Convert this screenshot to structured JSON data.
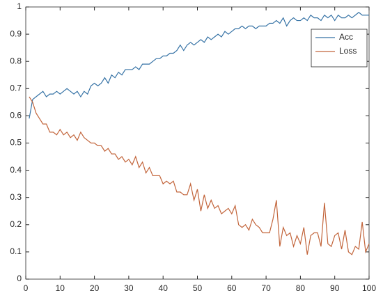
{
  "chart_data": {
    "type": "line",
    "x": [
      1,
      2,
      3,
      4,
      5,
      6,
      7,
      8,
      9,
      10,
      11,
      12,
      13,
      14,
      15,
      16,
      17,
      18,
      19,
      20,
      21,
      22,
      23,
      24,
      25,
      26,
      27,
      28,
      29,
      30,
      31,
      32,
      33,
      34,
      35,
      36,
      37,
      38,
      39,
      40,
      41,
      42,
      43,
      44,
      45,
      46,
      47,
      48,
      49,
      50,
      51,
      52,
      53,
      54,
      55,
      56,
      57,
      58,
      59,
      60,
      61,
      62,
      63,
      64,
      65,
      66,
      67,
      68,
      69,
      70,
      71,
      72,
      73,
      74,
      75,
      76,
      77,
      78,
      79,
      80,
      81,
      82,
      83,
      84,
      85,
      86,
      87,
      88,
      89,
      90,
      91,
      92,
      93,
      94,
      95,
      96,
      97,
      98,
      99,
      100
    ],
    "series": [
      {
        "name": "Acc",
        "color": "#3572a5",
        "values": [
          0.59,
          0.66,
          0.67,
          0.68,
          0.69,
          0.67,
          0.68,
          0.68,
          0.69,
          0.68,
          0.69,
          0.7,
          0.69,
          0.68,
          0.69,
          0.67,
          0.69,
          0.68,
          0.71,
          0.72,
          0.71,
          0.72,
          0.74,
          0.72,
          0.75,
          0.74,
          0.76,
          0.75,
          0.77,
          0.77,
          0.77,
          0.78,
          0.77,
          0.79,
          0.79,
          0.79,
          0.8,
          0.81,
          0.81,
          0.82,
          0.82,
          0.83,
          0.83,
          0.84,
          0.86,
          0.84,
          0.86,
          0.87,
          0.86,
          0.87,
          0.88,
          0.87,
          0.89,
          0.88,
          0.89,
          0.9,
          0.89,
          0.91,
          0.9,
          0.91,
          0.92,
          0.92,
          0.93,
          0.92,
          0.93,
          0.93,
          0.92,
          0.93,
          0.93,
          0.93,
          0.94,
          0.94,
          0.95,
          0.94,
          0.96,
          0.93,
          0.95,
          0.96,
          0.95,
          0.95,
          0.96,
          0.95,
          0.97,
          0.96,
          0.96,
          0.95,
          0.97,
          0.96,
          0.97,
          0.95,
          0.97,
          0.96,
          0.96,
          0.97,
          0.96,
          0.97,
          0.98,
          0.97,
          0.97,
          0.97
        ]
      },
      {
        "name": "Loss",
        "color": "#c2643a",
        "values": [
          0.67,
          0.65,
          0.61,
          0.59,
          0.57,
          0.57,
          0.54,
          0.54,
          0.53,
          0.55,
          0.53,
          0.54,
          0.52,
          0.53,
          0.51,
          0.54,
          0.52,
          0.51,
          0.5,
          0.5,
          0.49,
          0.49,
          0.47,
          0.48,
          0.46,
          0.46,
          0.44,
          0.45,
          0.43,
          0.44,
          0.42,
          0.45,
          0.41,
          0.43,
          0.39,
          0.41,
          0.38,
          0.38,
          0.38,
          0.35,
          0.36,
          0.35,
          0.36,
          0.32,
          0.32,
          0.31,
          0.31,
          0.35,
          0.29,
          0.33,
          0.25,
          0.31,
          0.26,
          0.29,
          0.26,
          0.27,
          0.24,
          0.25,
          0.26,
          0.24,
          0.27,
          0.2,
          0.19,
          0.2,
          0.18,
          0.22,
          0.2,
          0.19,
          0.17,
          0.17,
          0.17,
          0.22,
          0.29,
          0.12,
          0.19,
          0.16,
          0.17,
          0.12,
          0.16,
          0.13,
          0.19,
          0.09,
          0.16,
          0.17,
          0.17,
          0.12,
          0.28,
          0.13,
          0.12,
          0.16,
          0.17,
          0.11,
          0.18,
          0.1,
          0.09,
          0.12,
          0.11,
          0.21,
          0.1,
          0.13
        ]
      }
    ],
    "xlim": [
      0,
      100
    ],
    "xticks": [
      0,
      10,
      20,
      30,
      40,
      50,
      60,
      70,
      80,
      90,
      100
    ],
    "ylim": [
      0,
      1
    ],
    "yticks": [
      0,
      0.1,
      0.2,
      0.3,
      0.4,
      0.5,
      0.6,
      0.7,
      0.8,
      0.9,
      1
    ],
    "grid": false,
    "legend": "northeast"
  }
}
